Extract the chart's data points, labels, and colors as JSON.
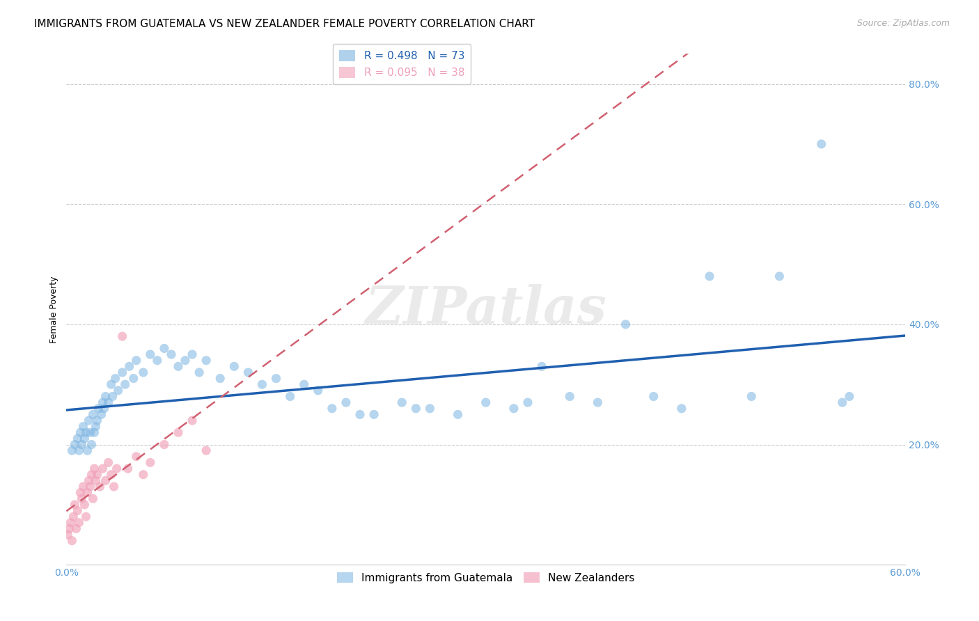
{
  "title": "IMMIGRANTS FROM GUATEMALA VS NEW ZEALANDER FEMALE POVERTY CORRELATION CHART",
  "source": "Source: ZipAtlas.com",
  "ylabel": "Female Poverty",
  "xlim": [
    0.0,
    0.6
  ],
  "ylim": [
    0.0,
    0.85
  ],
  "xticks": [
    0.0,
    0.1,
    0.2,
    0.3,
    0.4,
    0.5,
    0.6
  ],
  "xticklabels": [
    "0.0%",
    "",
    "",
    "",
    "",
    "",
    "60.0%"
  ],
  "yticks": [
    0.0,
    0.2,
    0.4,
    0.6,
    0.8
  ],
  "yticklabels": [
    "",
    "20.0%",
    "40.0%",
    "60.0%",
    "80.0%"
  ],
  "blue_R": 0.498,
  "blue_N": 73,
  "pink_R": 0.095,
  "pink_N": 38,
  "blue_color": "#7ab3e0",
  "pink_color": "#f0a0b8",
  "blue_line_color": "#2060b0",
  "pink_line_color": "#d06070",
  "watermark": "ZIPatlas",
  "blue_scatter_x": [
    0.004,
    0.006,
    0.008,
    0.009,
    0.01,
    0.011,
    0.012,
    0.013,
    0.014,
    0.015,
    0.016,
    0.017,
    0.018,
    0.019,
    0.02,
    0.021,
    0.022,
    0.023,
    0.025,
    0.026,
    0.027,
    0.028,
    0.03,
    0.032,
    0.033,
    0.035,
    0.037,
    0.04,
    0.042,
    0.045,
    0.048,
    0.05,
    0.055,
    0.06,
    0.065,
    0.07,
    0.075,
    0.08,
    0.085,
    0.09,
    0.095,
    0.1,
    0.11,
    0.12,
    0.13,
    0.14,
    0.15,
    0.16,
    0.17,
    0.18,
    0.19,
    0.2,
    0.22,
    0.24,
    0.26,
    0.28,
    0.3,
    0.32,
    0.34,
    0.36,
    0.38,
    0.4,
    0.42,
    0.44,
    0.46,
    0.49,
    0.51,
    0.54,
    0.555,
    0.56,
    0.33,
    0.25,
    0.21
  ],
  "blue_scatter_y": [
    0.19,
    0.2,
    0.21,
    0.19,
    0.22,
    0.2,
    0.23,
    0.21,
    0.22,
    0.19,
    0.24,
    0.22,
    0.2,
    0.25,
    0.22,
    0.23,
    0.24,
    0.26,
    0.25,
    0.27,
    0.26,
    0.28,
    0.27,
    0.3,
    0.28,
    0.31,
    0.29,
    0.32,
    0.3,
    0.33,
    0.31,
    0.34,
    0.32,
    0.35,
    0.34,
    0.36,
    0.35,
    0.33,
    0.34,
    0.35,
    0.32,
    0.34,
    0.31,
    0.33,
    0.32,
    0.3,
    0.31,
    0.28,
    0.3,
    0.29,
    0.26,
    0.27,
    0.25,
    0.27,
    0.26,
    0.25,
    0.27,
    0.26,
    0.33,
    0.28,
    0.27,
    0.4,
    0.28,
    0.26,
    0.48,
    0.28,
    0.48,
    0.7,
    0.27,
    0.28,
    0.27,
    0.26,
    0.25
  ],
  "pink_scatter_x": [
    0.001,
    0.002,
    0.003,
    0.004,
    0.005,
    0.006,
    0.007,
    0.008,
    0.009,
    0.01,
    0.011,
    0.012,
    0.013,
    0.014,
    0.015,
    0.016,
    0.017,
    0.018,
    0.019,
    0.02,
    0.021,
    0.022,
    0.024,
    0.026,
    0.028,
    0.03,
    0.032,
    0.034,
    0.036,
    0.04,
    0.044,
    0.05,
    0.055,
    0.06,
    0.07,
    0.08,
    0.09,
    0.1
  ],
  "pink_scatter_y": [
    0.05,
    0.06,
    0.07,
    0.04,
    0.08,
    0.1,
    0.06,
    0.09,
    0.07,
    0.12,
    0.11,
    0.13,
    0.1,
    0.08,
    0.12,
    0.14,
    0.13,
    0.15,
    0.11,
    0.16,
    0.14,
    0.15,
    0.13,
    0.16,
    0.14,
    0.17,
    0.15,
    0.13,
    0.16,
    0.38,
    0.16,
    0.18,
    0.15,
    0.17,
    0.2,
    0.22,
    0.24,
    0.19
  ],
  "grid_color": "#cccccc",
  "tick_color": "#5b9bd5",
  "title_fontsize": 11,
  "axis_label_fontsize": 9,
  "tick_fontsize": 10,
  "legend_top_labels": [
    "R = 0.498   N = 73",
    "R = 0.095   N = 38"
  ],
  "legend_bottom_labels": [
    "Immigrants from Guatemala",
    "New Zealanders"
  ]
}
